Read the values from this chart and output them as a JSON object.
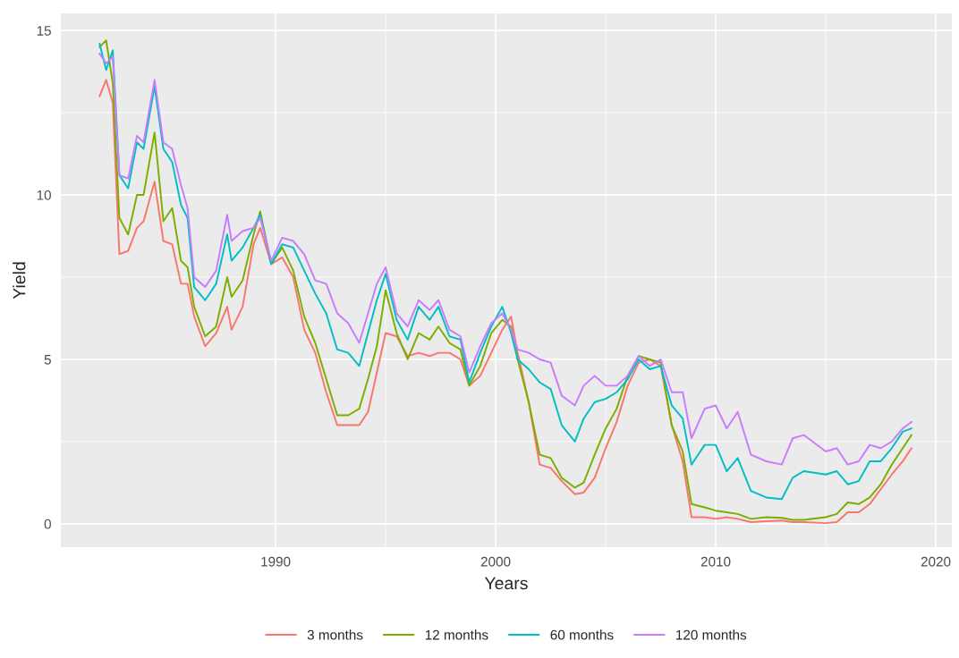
{
  "chart_data": {
    "type": "line",
    "xlabel": "Years",
    "ylabel": "Yield",
    "x": [
      1982.0,
      1982.3,
      1982.6,
      1982.9,
      1983.3,
      1983.7,
      1984.0,
      1984.5,
      1984.9,
      1985.3,
      1985.7,
      1986.0,
      1986.3,
      1986.8,
      1987.3,
      1987.8,
      1988.0,
      1988.5,
      1989.0,
      1989.3,
      1989.8,
      1990.3,
      1990.8,
      1991.3,
      1991.8,
      1992.3,
      1992.8,
      1993.3,
      1993.8,
      1994.2,
      1994.6,
      1995.0,
      1995.5,
      1996.0,
      1996.5,
      1997.0,
      1997.4,
      1997.9,
      1998.4,
      1998.8,
      1999.3,
      1999.8,
      2000.3,
      2000.7,
      2001.0,
      2001.5,
      2002.0,
      2002.5,
      2003.0,
      2003.6,
      2004.0,
      2004.5,
      2005.0,
      2005.5,
      2006.0,
      2006.5,
      2007.0,
      2007.5,
      2008.0,
      2008.5,
      2008.9,
      2009.5,
      2010.0,
      2010.5,
      2011.0,
      2011.6,
      2012.3,
      2013.0,
      2013.5,
      2014.0,
      2015.0,
      2015.5,
      2016.0,
      2016.5,
      2017.0,
      2017.5,
      2018.0,
      2018.5,
      2018.9
    ],
    "series": [
      {
        "name": "3 months",
        "color": "#f8766d",
        "values": [
          13.0,
          13.5,
          12.8,
          8.2,
          8.3,
          9.0,
          9.2,
          10.4,
          8.6,
          8.5,
          7.3,
          7.3,
          6.3,
          5.4,
          5.8,
          6.6,
          5.9,
          6.6,
          8.5,
          9.0,
          7.9,
          8.1,
          7.5,
          5.9,
          5.2,
          4.0,
          3.0,
          3.0,
          3.0,
          3.4,
          4.6,
          5.8,
          5.7,
          5.1,
          5.2,
          5.1,
          5.2,
          5.2,
          5.0,
          4.2,
          4.5,
          5.2,
          5.9,
          6.3,
          5.2,
          3.7,
          1.8,
          1.7,
          1.3,
          0.9,
          0.95,
          1.4,
          2.3,
          3.1,
          4.2,
          4.9,
          5.0,
          4.8,
          3.0,
          1.9,
          0.2,
          0.2,
          0.15,
          0.2,
          0.15,
          0.05,
          0.08,
          0.1,
          0.05,
          0.05,
          0.02,
          0.05,
          0.35,
          0.35,
          0.6,
          1.05,
          1.5,
          1.9,
          2.3
        ]
      },
      {
        "name": "12 months",
        "color": "#7cae00",
        "values": [
          14.5,
          14.7,
          13.4,
          9.3,
          8.8,
          10.0,
          10.0,
          11.9,
          9.2,
          9.6,
          8.0,
          7.8,
          6.6,
          5.7,
          6.0,
          7.5,
          6.9,
          7.4,
          8.8,
          9.5,
          7.9,
          8.4,
          7.7,
          6.3,
          5.5,
          4.4,
          3.3,
          3.3,
          3.5,
          4.4,
          5.4,
          7.1,
          5.8,
          5.0,
          5.8,
          5.6,
          6.0,
          5.5,
          5.3,
          4.2,
          4.8,
          5.8,
          6.2,
          6.0,
          5.0,
          3.7,
          2.1,
          2.0,
          1.4,
          1.1,
          1.25,
          2.1,
          2.9,
          3.5,
          4.5,
          5.1,
          5.0,
          4.9,
          3.0,
          2.2,
          0.6,
          0.5,
          0.4,
          0.35,
          0.3,
          0.15,
          0.2,
          0.18,
          0.12,
          0.12,
          0.2,
          0.3,
          0.65,
          0.6,
          0.8,
          1.2,
          1.8,
          2.3,
          2.7
        ]
      },
      {
        "name": "60 months",
        "color": "#00bfc4",
        "values": [
          14.6,
          13.8,
          14.4,
          10.6,
          10.2,
          11.6,
          11.4,
          13.3,
          11.4,
          11.0,
          9.7,
          9.3,
          7.2,
          6.8,
          7.3,
          8.8,
          8.0,
          8.4,
          9.0,
          9.4,
          7.9,
          8.5,
          8.4,
          7.7,
          7.0,
          6.4,
          5.3,
          5.2,
          4.8,
          5.8,
          6.8,
          7.6,
          6.2,
          5.6,
          6.6,
          6.2,
          6.6,
          5.7,
          5.6,
          4.3,
          5.2,
          6.0,
          6.6,
          5.8,
          5.0,
          4.7,
          4.3,
          4.1,
          3.0,
          2.5,
          3.2,
          3.7,
          3.8,
          4.0,
          4.4,
          5.0,
          4.7,
          4.8,
          3.6,
          3.2,
          1.8,
          2.4,
          2.4,
          1.6,
          2.0,
          1.0,
          0.8,
          0.75,
          1.4,
          1.6,
          1.5,
          1.6,
          1.2,
          1.3,
          1.9,
          1.9,
          2.3,
          2.8,
          2.9
        ]
      },
      {
        "name": "120 months",
        "color": "#c77cff",
        "values": [
          14.3,
          14.0,
          14.2,
          10.6,
          10.5,
          11.8,
          11.6,
          13.5,
          11.6,
          11.4,
          10.3,
          9.6,
          7.5,
          7.2,
          7.7,
          9.4,
          8.6,
          8.9,
          9.0,
          9.3,
          8.0,
          8.7,
          8.6,
          8.2,
          7.4,
          7.3,
          6.4,
          6.1,
          5.5,
          6.4,
          7.3,
          7.8,
          6.4,
          6.0,
          6.8,
          6.5,
          6.8,
          5.9,
          5.7,
          4.6,
          5.4,
          6.1,
          6.4,
          5.9,
          5.3,
          5.2,
          5.0,
          4.9,
          3.9,
          3.6,
          4.2,
          4.5,
          4.2,
          4.2,
          4.5,
          5.1,
          4.8,
          5.0,
          4.0,
          4.0,
          2.6,
          3.5,
          3.6,
          2.9,
          3.4,
          2.1,
          1.9,
          1.8,
          2.6,
          2.7,
          2.2,
          2.3,
          1.8,
          1.9,
          2.4,
          2.3,
          2.5,
          2.9,
          3.1
        ]
      }
    ],
    "xlim": [
      1980.24,
      2020.73
    ],
    "ylim": [
      -0.71,
      15.52
    ],
    "xticks": [
      1990,
      2000,
      2010,
      2020
    ],
    "yticks": [
      0,
      5,
      10,
      15
    ],
    "grid": true,
    "legend": "bottom",
    "line_style": "solid"
  }
}
